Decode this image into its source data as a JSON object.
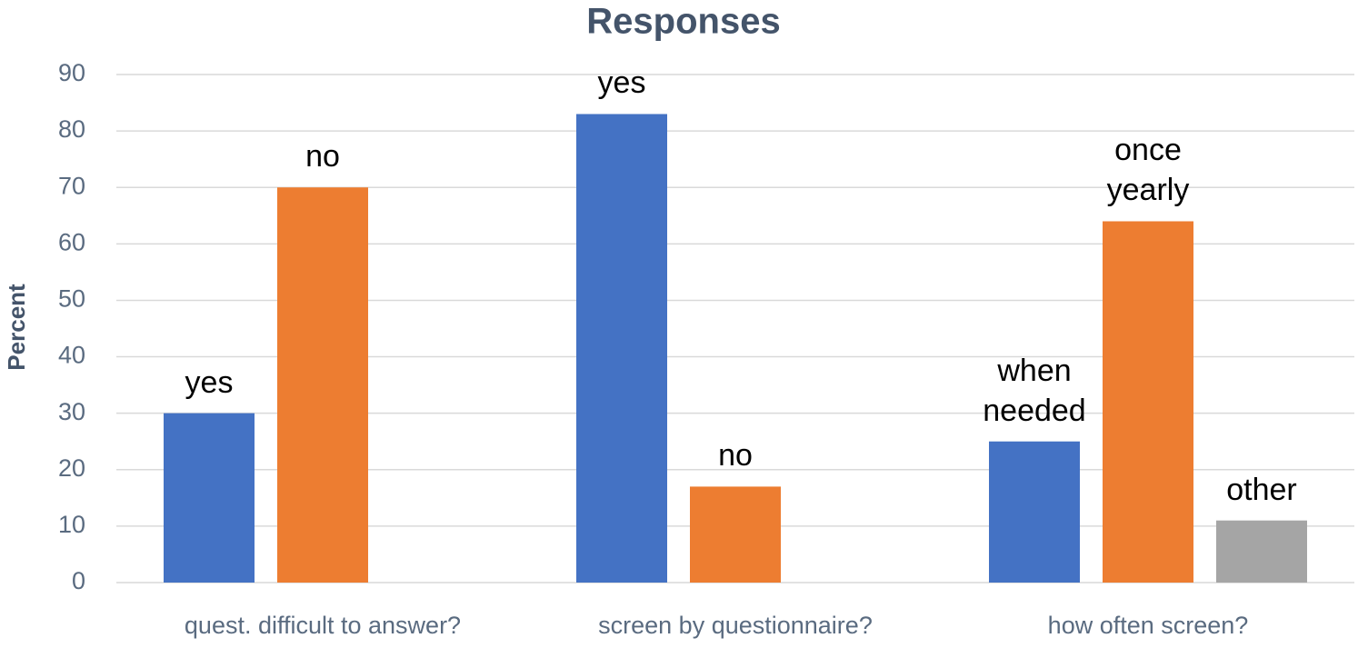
{
  "chart_data": {
    "type": "bar",
    "title": "Responses",
    "y_label": "Percent",
    "categories": [
      "quest. difficult to answer?",
      "screen by questionnaire?",
      "how often screen?"
    ],
    "series": [
      {
        "color": "#4472c4",
        "values": [
          30,
          83,
          25
        ],
        "bar_labels": [
          "yes",
          "yes",
          "when needed"
        ]
      },
      {
        "color": "#ed7d31",
        "values": [
          70,
          17,
          64
        ],
        "bar_labels": [
          "no",
          "no",
          "once yearly"
        ]
      },
      {
        "color": "#a5a5a5",
        "values": [
          null,
          null,
          11
        ],
        "bar_labels": [
          null,
          null,
          "other"
        ]
      }
    ],
    "ylim": [
      0,
      90
    ],
    "yticks": [
      0,
      10,
      20,
      30,
      40,
      50,
      60,
      70,
      80,
      90
    ],
    "grid": true
  }
}
